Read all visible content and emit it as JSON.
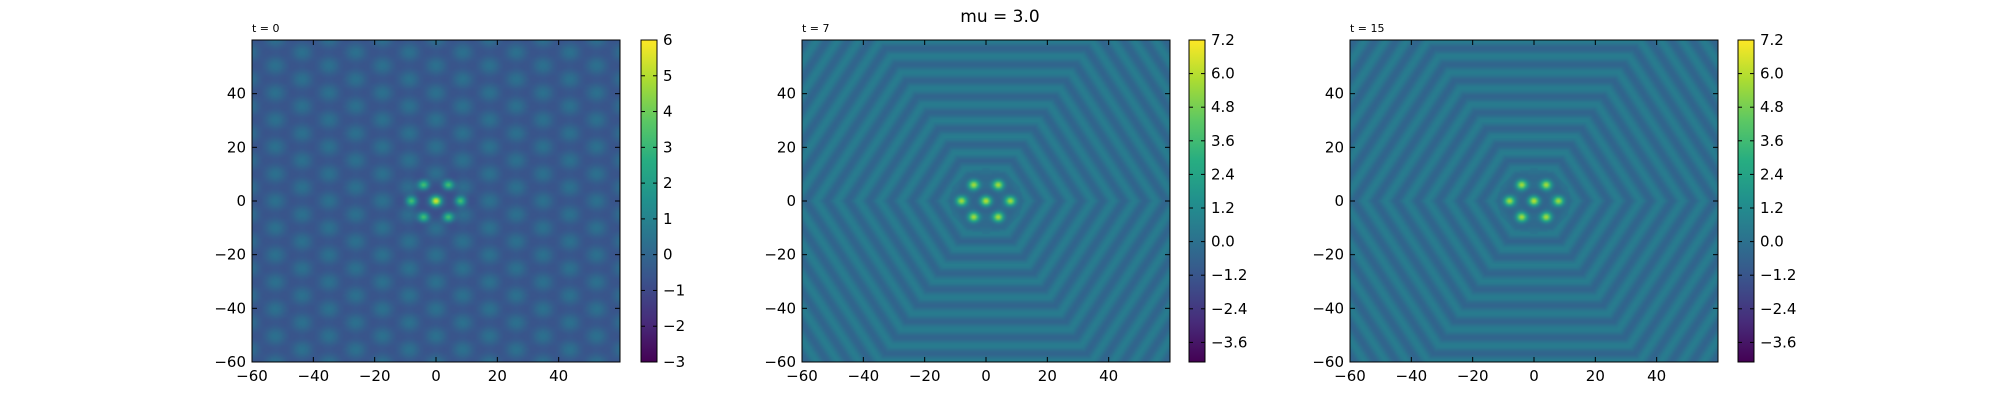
{
  "figure": {
    "suptitle": "mu = 3.0"
  },
  "chart_data": [
    {
      "type": "heatmap",
      "title": "t = 0",
      "xlim": [
        -60,
        60
      ],
      "ylim": [
        -60,
        60
      ],
      "xticks": [
        -60,
        -40,
        -20,
        0,
        20,
        40
      ],
      "yticks": [
        -60,
        -40,
        -20,
        0,
        20,
        40
      ],
      "colormap": "viridis",
      "colorbar": {
        "min": -3,
        "max": 6,
        "ticks": [
          -3,
          -2,
          -1,
          0,
          1,
          2,
          3,
          4,
          5,
          6
        ]
      },
      "background_value": -0.3,
      "peaks": [
        {
          "x": 0,
          "y": 0,
          "value": 6.0
        },
        {
          "x": -4,
          "y": 6,
          "value": 4.3
        },
        {
          "x": 4,
          "y": 6,
          "value": 4.3
        },
        {
          "x": -8,
          "y": 0,
          "value": 4.3
        },
        {
          "x": 8,
          "y": 0,
          "value": 4.3
        },
        {
          "x": -4,
          "y": -6,
          "value": 4.3
        },
        {
          "x": 4,
          "y": -6,
          "value": 4.3
        }
      ],
      "pattern": "hexagonal-lattice"
    },
    {
      "type": "heatmap",
      "title": "t = 7",
      "xlim": [
        -60,
        60
      ],
      "ylim": [
        -60,
        60
      ],
      "xticks": [
        -60,
        -40,
        -20,
        0,
        20,
        40
      ],
      "yticks": [
        -60,
        -40,
        -20,
        0,
        20,
        40
      ],
      "colormap": "viridis",
      "colorbar": {
        "min": -4.3,
        "max": 7.2,
        "ticks": [
          -3.6,
          -2.4,
          -1.2,
          0.0,
          1.2,
          2.4,
          3.6,
          4.8,
          6.0,
          7.2
        ]
      },
      "background_value": 0.0,
      "peaks": [
        {
          "x": 0,
          "y": 0,
          "value": 7.2
        },
        {
          "x": -4,
          "y": 6,
          "value": 6.8
        },
        {
          "x": 4,
          "y": 6,
          "value": 6.8
        },
        {
          "x": -8,
          "y": 0,
          "value": 6.8
        },
        {
          "x": 8,
          "y": 0,
          "value": 6.8
        },
        {
          "x": -4,
          "y": -6,
          "value": 6.8
        },
        {
          "x": 4,
          "y": -6,
          "value": 6.8
        }
      ],
      "pattern": "hexagonal-rings"
    },
    {
      "type": "heatmap",
      "title": "t = 15",
      "xlim": [
        -60,
        60
      ],
      "ylim": [
        -60,
        60
      ],
      "xticks": [
        -60,
        -40,
        -20,
        0,
        20,
        40
      ],
      "yticks": [
        -60,
        -40,
        -20,
        0,
        20,
        40
      ],
      "colormap": "viridis",
      "colorbar": {
        "min": -4.3,
        "max": 7.2,
        "ticks": [
          -3.6,
          -2.4,
          -1.2,
          0.0,
          1.2,
          2.4,
          3.6,
          4.8,
          6.0,
          7.2
        ]
      },
      "background_value": 0.0,
      "peaks": [
        {
          "x": 0,
          "y": 0,
          "value": 7.2
        },
        {
          "x": -4,
          "y": 6,
          "value": 6.8
        },
        {
          "x": 4,
          "y": 6,
          "value": 6.8
        },
        {
          "x": -8,
          "y": 0,
          "value": 6.8
        },
        {
          "x": 8,
          "y": 0,
          "value": 6.8
        },
        {
          "x": -4,
          "y": -6,
          "value": 6.8
        },
        {
          "x": 4,
          "y": -6,
          "value": 6.8
        }
      ],
      "pattern": "hexagonal-rings"
    }
  ]
}
